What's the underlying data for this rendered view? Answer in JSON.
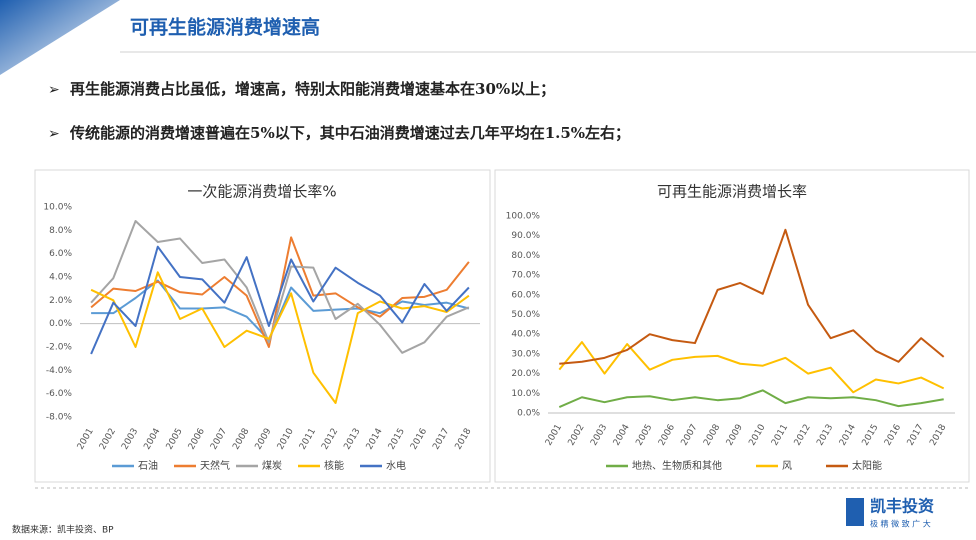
{
  "header": {
    "title": "可再生能源消费增速高"
  },
  "bullets": [
    "再生能源消费占比虽低，增速高，特别太阳能消费增速基本在30%以上；",
    "传统能源的消费增速普遍在5%以下，其中石油消费增速过去几年平均在1.5%左右；"
  ],
  "chart_data": [
    {
      "type": "line",
      "title": "一次能源消费增长率%",
      "categories": [
        "2001",
        "2002",
        "2003",
        "2004",
        "2005",
        "2006",
        "2007",
        "2008",
        "2009",
        "2010",
        "2011",
        "2012",
        "2013",
        "2014",
        "2015",
        "2016",
        "2017",
        "2018"
      ],
      "ylim": [
        -8,
        10
      ],
      "yticks": [
        {
          "value": -8,
          "label": "-8.0%"
        },
        {
          "value": -6,
          "label": "-6.0%"
        },
        {
          "value": -4,
          "label": "-4.0%"
        },
        {
          "value": -2,
          "label": "-2.0%"
        },
        {
          "value": 0,
          "label": "0.0%"
        },
        {
          "value": 2,
          "label": "2.0%"
        },
        {
          "value": 4,
          "label": "4.0%"
        },
        {
          "value": 6,
          "label": "6.0%"
        },
        {
          "value": 8,
          "label": "8.0%"
        },
        {
          "value": 10,
          "label": "10.0%"
        }
      ],
      "series": [
        {
          "name": "石油",
          "color": "#5b9bd5",
          "values": [
            0.9,
            0.9,
            2.2,
            3.7,
            1.3,
            1.3,
            1.4,
            0.6,
            -1.4,
            3.1,
            1.1,
            1.2,
            1.3,
            0.9,
            1.9,
            1.6,
            1.8,
            1.3
          ]
        },
        {
          "name": "天然气",
          "color": "#ed7d31",
          "values": [
            1.4,
            3.0,
            2.8,
            3.6,
            2.7,
            2.5,
            4.0,
            2.4,
            -2.0,
            7.4,
            2.4,
            2.6,
            1.4,
            0.6,
            2.2,
            2.3,
            2.9,
            5.3
          ]
        },
        {
          "name": "煤炭",
          "color": "#a5a5a5",
          "values": [
            1.8,
            3.9,
            8.8,
            7.0,
            7.3,
            5.2,
            5.5,
            3.1,
            -1.6,
            4.9,
            4.8,
            0.4,
            1.7,
            -0.1,
            -2.5,
            -1.6,
            0.6,
            1.4
          ]
        },
        {
          "name": "核能",
          "color": "#ffc000",
          "values": [
            2.9,
            2.0,
            -2.0,
            4.4,
            0.4,
            1.3,
            -2.0,
            -0.6,
            -1.3,
            2.6,
            -4.2,
            -6.8,
            0.9,
            1.9,
            1.3,
            1.5,
            1.0,
            2.4
          ]
        },
        {
          "name": "水电",
          "color": "#4472c4",
          "values": [
            -2.6,
            1.8,
            -0.2,
            6.6,
            4.0,
            3.8,
            1.8,
            5.7,
            -0.2,
            5.5,
            1.9,
            4.8,
            3.5,
            2.4,
            0.1,
            3.4,
            1.1,
            3.1
          ]
        }
      ]
    },
    {
      "type": "line",
      "title": "可再生能源消费增长率",
      "categories": [
        "2001",
        "2002",
        "2003",
        "2004",
        "2005",
        "2006",
        "2007",
        "2008",
        "2009",
        "2010",
        "2011",
        "2012",
        "2013",
        "2014",
        "2015",
        "2016",
        "2017",
        "2018"
      ],
      "ylim": [
        0,
        100
      ],
      "yticks": [
        {
          "value": 0,
          "label": "0.0%"
        },
        {
          "value": 10,
          "label": "10.0%"
        },
        {
          "value": 20,
          "label": "20.0%"
        },
        {
          "value": 30,
          "label": "30.0%"
        },
        {
          "value": 40,
          "label": "40.0%"
        },
        {
          "value": 50,
          "label": "50.0%"
        },
        {
          "value": 60,
          "label": "60.0%"
        },
        {
          "value": 70,
          "label": "70.0%"
        },
        {
          "value": 80,
          "label": "80.0%"
        },
        {
          "value": 90,
          "label": "90.0%"
        },
        {
          "value": 100,
          "label": "100.0%"
        }
      ],
      "series": [
        {
          "name": "地热、生物质和其他",
          "color": "#70ad47",
          "values": [
            3,
            8,
            5.5,
            8,
            8.5,
            6.5,
            8,
            6.5,
            7.5,
            11.5,
            5,
            8,
            7.5,
            8,
            6.5,
            3.5,
            5,
            7
          ]
        },
        {
          "name": "风",
          "color": "#ffc000",
          "values": [
            22,
            36,
            20,
            35,
            22,
            27,
            28.5,
            29,
            25,
            24,
            28,
            20,
            23,
            10.5,
            17,
            15,
            18,
            12.5
          ]
        },
        {
          "name": "太阳能",
          "color": "#c55a11",
          "values": [
            25,
            26,
            28,
            32,
            40,
            37,
            35.5,
            62.5,
            66,
            60.5,
            93,
            55,
            38,
            42,
            31.5,
            26,
            38,
            28.5
          ]
        }
      ]
    }
  ],
  "source": "数据来源：凯丰投资、BP",
  "logo": {
    "name": "凯丰投资",
    "tagline": "极 精 微 致 广 大"
  }
}
